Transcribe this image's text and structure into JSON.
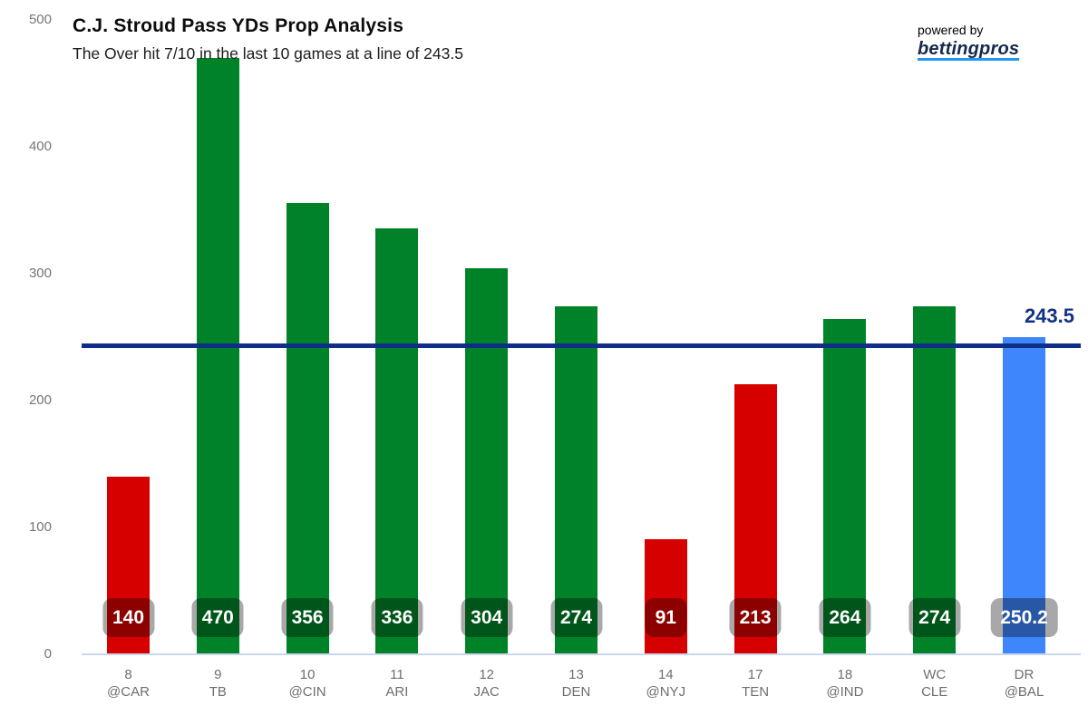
{
  "header": {
    "title": "C.J. Stroud Pass YDs Prop Analysis",
    "subtitle": "The Over hit 7/10 in the last 10 games at a line of 243.5",
    "powered_by": "powered by",
    "brand": "bettingpros"
  },
  "colors": {
    "over": "#008328",
    "under": "#d60000",
    "projection": "#3e86fb",
    "prop_line": "#0e2e87",
    "prop_line_label": "#123287",
    "axis_label": "#757575",
    "x_label": "#6e6e6e",
    "axis_line": "#ccd6eb",
    "badge_overlay": "rgba(0,0,0,0.34)",
    "badge_text": "#ffffff",
    "brand_navy": "#14294e",
    "brand_underline": "#2196f3"
  },
  "chart_data": {
    "type": "bar",
    "title": "C.J. Stroud Pass YDs Prop Analysis",
    "subtitle": "The Over hit 7/10 in the last 10 games at a line of 243.5",
    "stat": "Pass YDs",
    "ylim": [
      0,
      500
    ],
    "yticks": [
      0,
      100,
      200,
      300,
      400,
      500
    ],
    "grid": false,
    "legend": "none",
    "prop_line": {
      "value": 243.5,
      "label": "243.5"
    },
    "categories": [
      "8 @CAR",
      "9 TB",
      "10 @CIN",
      "11 ARI",
      "12 JAC",
      "13 DEN",
      "14 @NYJ",
      "17 TEN",
      "18 @IND",
      "WC CLE",
      "DR @BAL"
    ],
    "values": [
      140,
      470,
      356,
      336,
      304,
      274,
      91,
      213,
      264,
      274,
      250.2
    ],
    "games": [
      {
        "week": "8",
        "opp": "@CAR",
        "value": 140,
        "label": "140",
        "result": "under"
      },
      {
        "week": "9",
        "opp": "TB",
        "value": 470,
        "label": "470",
        "result": "over"
      },
      {
        "week": "10",
        "opp": "@CIN",
        "value": 356,
        "label": "356",
        "result": "over"
      },
      {
        "week": "11",
        "opp": "ARI",
        "value": 336,
        "label": "336",
        "result": "over"
      },
      {
        "week": "12",
        "opp": "JAC",
        "value": 304,
        "label": "304",
        "result": "over"
      },
      {
        "week": "13",
        "opp": "DEN",
        "value": 274,
        "label": "274",
        "result": "over"
      },
      {
        "week": "14",
        "opp": "@NYJ",
        "value": 91,
        "label": "91",
        "result": "under"
      },
      {
        "week": "17",
        "opp": "TEN",
        "value": 213,
        "label": "213",
        "result": "under"
      },
      {
        "week": "18",
        "opp": "@IND",
        "value": 264,
        "label": "264",
        "result": "over"
      },
      {
        "week": "WC",
        "opp": "CLE",
        "value": 274,
        "label": "274",
        "result": "over"
      },
      {
        "week": "DR",
        "opp": "@BAL",
        "value": 250.2,
        "label": "250.2",
        "result": "projection"
      }
    ]
  }
}
